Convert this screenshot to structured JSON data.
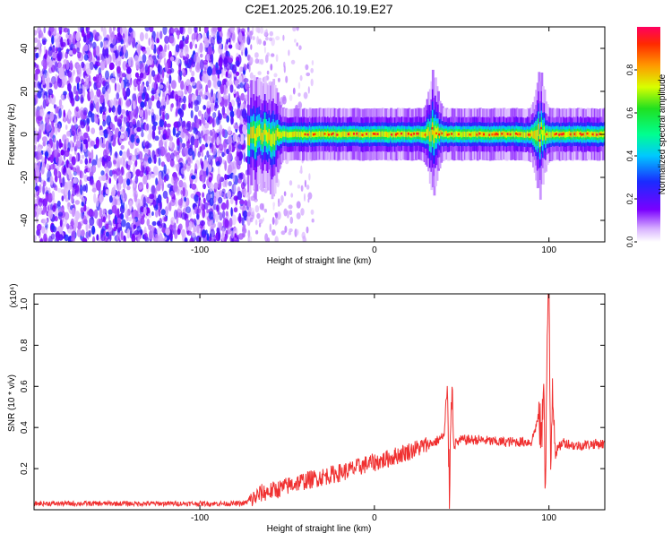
{
  "title": "C2E1.2025.206.10.19.E27",
  "chart_data": [
    {
      "type": "heatmap",
      "xlabel": "Height of straight line (km)",
      "ylabel": "Frequency (Hz)",
      "xlim": [
        -195,
        132
      ],
      "ylim": [
        -50,
        50
      ],
      "xticks": [
        -100,
        0,
        100
      ],
      "yticks": [
        -40,
        -20,
        0,
        20,
        40
      ],
      "colorbar": {
        "label": "Normalized spectral amplitude",
        "range": [
          0,
          1
        ],
        "ticks": [
          0.0,
          0.2,
          0.4,
          0.6,
          0.8
        ]
      },
      "noise_region_x": [
        -195,
        -72
      ],
      "sparse_region_x": [
        -72,
        -35
      ],
      "signal_band": {
        "x_start": -72,
        "center_hz": 0,
        "width_hz": [
          -3,
          3
        ],
        "disturbances_x": [
          -68,
          -58,
          34,
          95
        ]
      }
    },
    {
      "type": "line",
      "xlabel": "Height of straight line (km)",
      "ylabel": "SNR (10 * v/v)",
      "scale_label": "(x10⁴)",
      "xlim": [
        -195,
        132
      ],
      "ylim": [
        0,
        1.05
      ],
      "xticks": [
        -100,
        0,
        100
      ],
      "yticks": [
        0.2,
        0.4,
        0.6,
        0.8,
        1.0
      ],
      "color": "#f03030",
      "x": [
        -195,
        -150,
        -100,
        -75,
        -70,
        -65,
        -55,
        -45,
        -35,
        -25,
        -15,
        -5,
        5,
        15,
        25,
        35,
        40,
        42,
        43,
        44,
        46,
        50,
        60,
        70,
        80,
        90,
        94,
        96,
        97,
        98,
        99,
        100,
        101,
        102,
        104,
        108,
        115,
        125,
        132
      ],
      "y": [
        0.03,
        0.03,
        0.03,
        0.03,
        0.05,
        0.08,
        0.1,
        0.13,
        0.15,
        0.17,
        0.19,
        0.22,
        0.24,
        0.27,
        0.3,
        0.33,
        0.36,
        0.55,
        0.05,
        0.62,
        0.32,
        0.34,
        0.34,
        0.33,
        0.33,
        0.33,
        0.45,
        0.35,
        0.7,
        0.05,
        0.85,
        1.05,
        0.2,
        0.62,
        0.28,
        0.33,
        0.31,
        0.32,
        0.32
      ]
    }
  ]
}
